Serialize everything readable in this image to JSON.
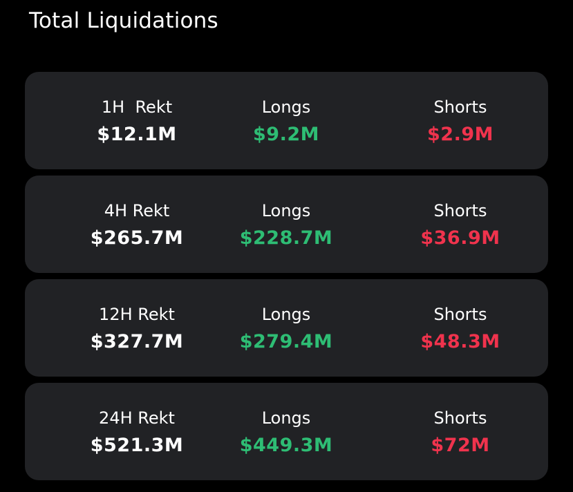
{
  "title": "Total Liquidations",
  "colors": {
    "background": "#000000",
    "card": "#212225",
    "longs": "#2ebd74",
    "shorts": "#f0334d",
    "text": "#ffffff"
  },
  "rows": [
    {
      "period_label": "1H  Rekt",
      "total": "$12.1M",
      "longs_label": "Longs",
      "longs": "$9.2M",
      "shorts_label": "Shorts",
      "shorts": "$2.9M"
    },
    {
      "period_label": "4H Rekt",
      "total": "$265.7M",
      "longs_label": "Longs",
      "longs": "$228.7M",
      "shorts_label": "Shorts",
      "shorts": "$36.9M"
    },
    {
      "period_label": "12H Rekt",
      "total": "$327.7M",
      "longs_label": "Longs",
      "longs": "$279.4M",
      "shorts_label": "Shorts",
      "shorts": "$48.3M"
    },
    {
      "period_label": "24H Rekt",
      "total": "$521.3M",
      "longs_label": "Longs",
      "longs": "$449.3M",
      "shorts_label": "Shorts",
      "shorts": "$72M"
    }
  ]
}
